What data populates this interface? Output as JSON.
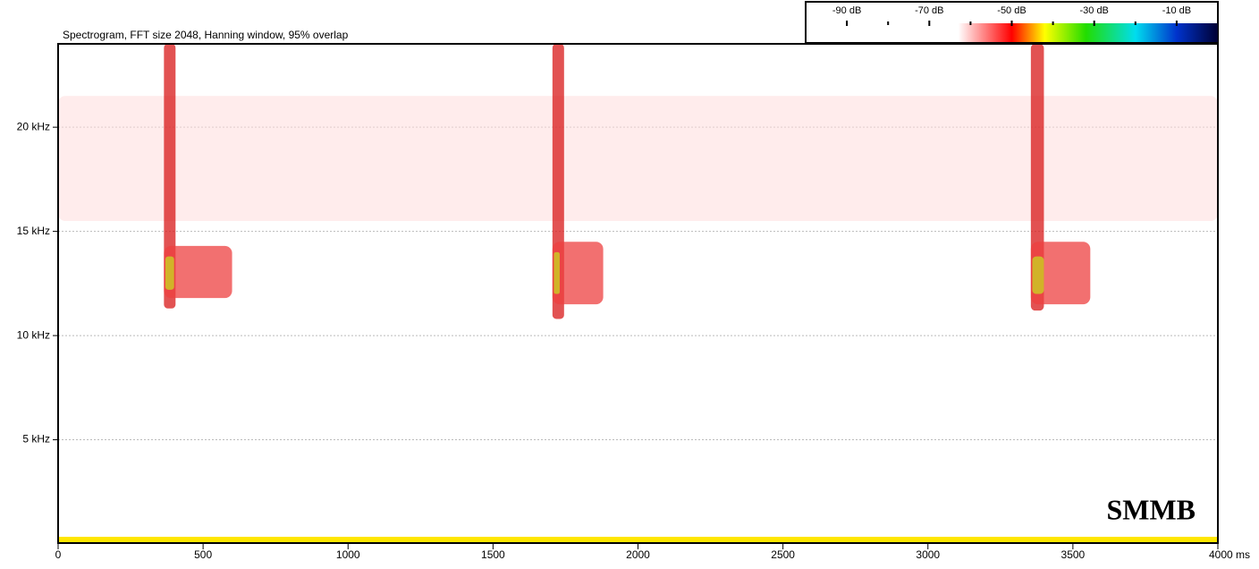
{
  "chart_data": {
    "type": "spectrogram",
    "title": "Spectrogram, FFT size 2048, Hanning window, 95% overlap",
    "annotation": "SMMB",
    "xlim": [
      0,
      4000
    ],
    "xticks": [
      0,
      500,
      1000,
      1500,
      2000,
      2500,
      3000,
      3500,
      {
        "value": 4000,
        "label": "4000 ms"
      }
    ],
    "ylim": [
      0,
      24
    ],
    "yticks": [
      {
        "value": 5,
        "label": "5 kHz"
      },
      {
        "value": 10,
        "label": "10 kHz"
      },
      {
        "value": 15,
        "label": "15 kHz"
      },
      {
        "value": 20,
        "label": "20 kHz"
      }
    ],
    "grid": true,
    "events": [
      {
        "x": [
          0,
          4000
        ],
        "y": [
          15.5,
          21.5
        ],
        "color": "#ffdcdc"
      },
      {
        "x": [
          365,
          405
        ],
        "y": [
          11.3,
          24
        ],
        "color": "#d81818"
      },
      {
        "x": [
          365,
          600
        ],
        "y": [
          11.8,
          14.3
        ],
        "color": "#ee4040"
      },
      {
        "x": [
          370,
          400
        ],
        "y": [
          12.2,
          13.8
        ],
        "color": "#c8d820"
      },
      {
        "x": [
          1705,
          1745
        ],
        "y": [
          10.8,
          24
        ],
        "color": "#d81818"
      },
      {
        "x": [
          1705,
          1880
        ],
        "y": [
          11.5,
          14.5
        ],
        "color": "#ee4040"
      },
      {
        "x": [
          1710,
          1730
        ],
        "y": [
          12,
          14
        ],
        "color": "#c8d820"
      },
      {
        "x": [
          3355,
          3400
        ],
        "y": [
          11.2,
          24
        ],
        "color": "#d81818"
      },
      {
        "x": [
          3355,
          3560
        ],
        "y": [
          11.5,
          14.5
        ],
        "color": "#ee4040"
      },
      {
        "x": [
          3360,
          3400
        ],
        "y": [
          12,
          13.8
        ],
        "color": "#c8d820"
      }
    ],
    "colorbar": {
      "lim": [
        -100,
        0
      ],
      "ticks": [
        {
          "value": -90,
          "label": "-90 dB"
        },
        {
          "value": -70,
          "label": "-70 dB"
        },
        {
          "value": -50,
          "label": "-50 dB"
        },
        {
          "value": -30,
          "label": "-30 dB"
        },
        {
          "value": -10,
          "label": "-10 dB"
        }
      ],
      "minor_ticks": [
        -80,
        -60,
        -40,
        -20
      ],
      "stops": [
        {
          "value": -63,
          "color": "#ffffff"
        },
        {
          "value": -50,
          "color": "#ff0000"
        },
        {
          "value": -42,
          "color": "#ffff00"
        },
        {
          "value": -32,
          "color": "#22dd00"
        },
        {
          "value": -20,
          "color": "#00ddee"
        },
        {
          "value": -10,
          "color": "#0033cc"
        },
        {
          "value": 0,
          "color": "#000033"
        }
      ]
    }
  }
}
